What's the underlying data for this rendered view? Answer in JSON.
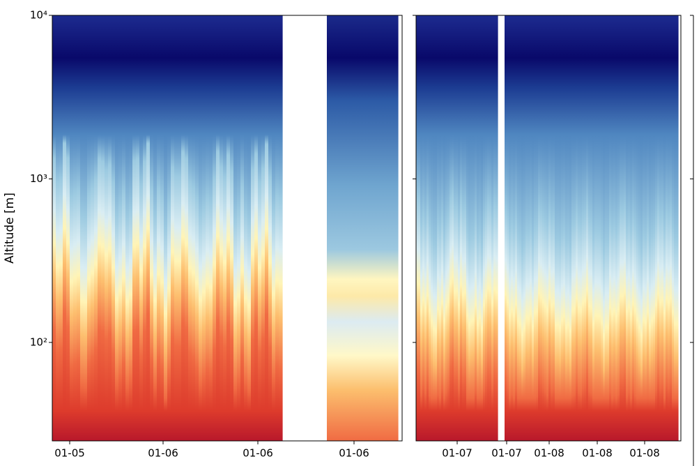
{
  "chart_data": {
    "type": "heatmap",
    "y_label": "Altitude [m]",
    "ylim": [
      25,
      10000
    ],
    "log_y": true,
    "yticks": [
      {
        "value": 100,
        "label": "10²"
      },
      {
        "value": 1000,
        "label": "10³"
      },
      {
        "value": 10000,
        "label": "10⁴"
      }
    ],
    "panels": [
      {
        "xtick_labels": [
          "01-05",
          "01-06",
          "01-06",
          "01-06"
        ]
      },
      {
        "xtick_labels": [
          "01-07",
          "01-07",
          "01-08",
          "01-08",
          "01-08"
        ]
      }
    ]
  }
}
